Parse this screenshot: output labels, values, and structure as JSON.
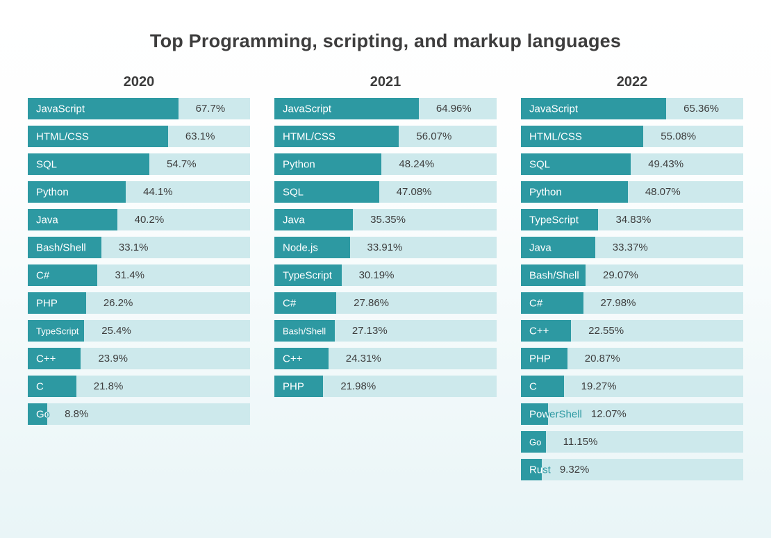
{
  "title": "Top Programming, scripting, and markup languages",
  "colors": {
    "bar": "#2d99a2",
    "track": "#cde9ec",
    "value_text": "#3e3e3e",
    "title_text": "#3d3d3d",
    "background_top": "#ffffff",
    "background_bottom": "#e9f5f7"
  },
  "chart_data": [
    {
      "type": "bar",
      "orientation": "horizontal",
      "title": "2020",
      "unit": "%",
      "xlim": [
        0,
        100
      ],
      "categories": [
        "JavaScript",
        "HTML/CSS",
        "SQL",
        "Python",
        "Java",
        "Bash/Shell",
        "C#",
        "PHP",
        "TypeScript",
        "C++",
        "C",
        "Go"
      ],
      "values": [
        67.7,
        63.1,
        54.7,
        44.1,
        40.2,
        33.1,
        31.4,
        26.2,
        25.4,
        23.9,
        21.8,
        8.8
      ],
      "value_labels": [
        "67.7%",
        "63.1%",
        "54.7%",
        "44.1%",
        "40.2%",
        "33.1%",
        "31.4%",
        "26.2%",
        "25.4%",
        "23.9%",
        "21.8%",
        "8.8%"
      ]
    },
    {
      "type": "bar",
      "orientation": "horizontal",
      "title": "2021",
      "unit": "%",
      "xlim": [
        0,
        100
      ],
      "categories": [
        "JavaScript",
        "HTML/CSS",
        "Python",
        "SQL",
        "Java",
        "Node.js",
        "TypeScript",
        "C#",
        "Bash/Shell",
        "C++",
        "PHP"
      ],
      "values": [
        64.96,
        56.07,
        48.24,
        47.08,
        35.35,
        33.91,
        30.19,
        27.86,
        27.13,
        24.31,
        21.98
      ],
      "value_labels": [
        "64.96%",
        "56.07%",
        "48.24%",
        "47.08%",
        "35.35%",
        "33.91%",
        "30.19%",
        "27.86%",
        "27.13%",
        "24.31%",
        "21.98%"
      ]
    },
    {
      "type": "bar",
      "orientation": "horizontal",
      "title": "2022",
      "unit": "%",
      "xlim": [
        0,
        100
      ],
      "categories": [
        "JavaScript",
        "HTML/CSS",
        "SQL",
        "Python",
        "TypeScript",
        "Java",
        "Bash/Shell",
        "C#",
        "C++",
        "PHP",
        "C",
        "PowerShell",
        "Go",
        "Rust"
      ],
      "values": [
        65.36,
        55.08,
        49.43,
        48.07,
        34.83,
        33.37,
        29.07,
        27.98,
        22.55,
        20.87,
        19.27,
        12.07,
        11.15,
        9.32
      ],
      "value_labels": [
        "65.36%",
        "55.08%",
        "49.43%",
        "48.07%",
        "34.83%",
        "33.37%",
        "29.07%",
        "27.98%",
        "22.55%",
        "20.87%",
        "19.27%",
        "12.07%",
        "11.15%",
        "9.32%"
      ]
    }
  ]
}
